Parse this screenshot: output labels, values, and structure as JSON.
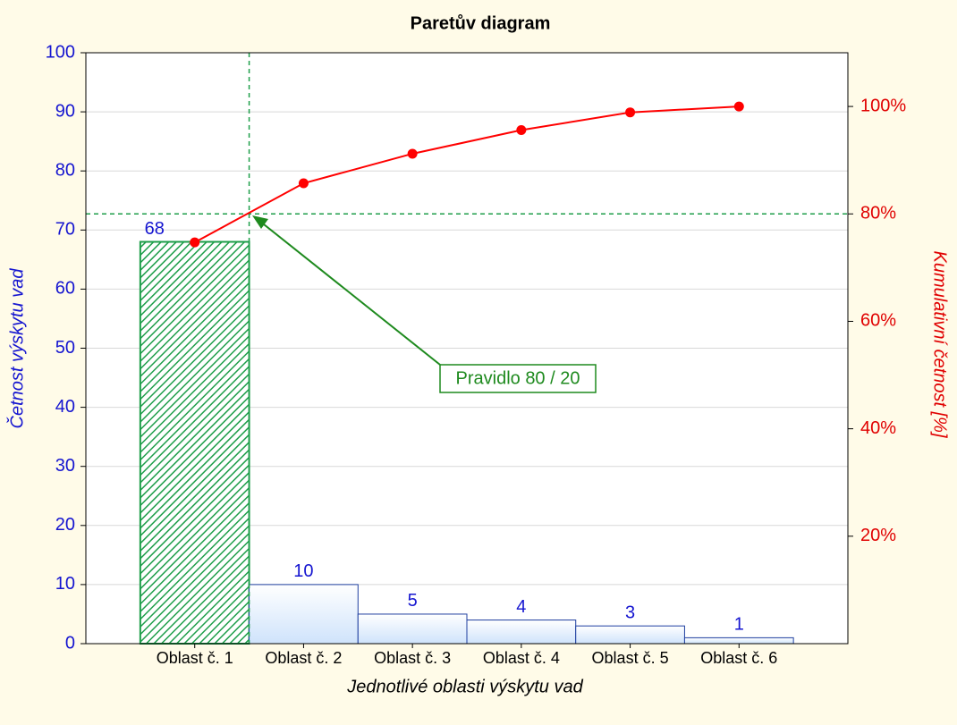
{
  "chart_data": {
    "type": "pareto",
    "title": "Paretův diagram",
    "x_label": "Jednotlivé oblasti výskytu vad",
    "y_label": "Četnost výskytu vad",
    "y2_label": "Kumulativní četnost [%]",
    "categories": [
      "Oblast č. 1",
      "Oblast č. 2",
      "Oblast č. 3",
      "Oblast č. 4",
      "Oblast č. 5",
      "Oblast č. 6"
    ],
    "series": [
      {
        "type": "bar",
        "color": "#cfe3fb",
        "border": "#1f3fa0",
        "values": [
          68,
          10,
          5,
          4,
          3,
          1
        ]
      },
      {
        "type": "line",
        "axis": "y2",
        "color": "#ff0000",
        "values": [
          74.7,
          85.7,
          91.2,
          95.6,
          98.9,
          100
        ]
      }
    ],
    "highlight_color": "#1e9e4a",
    "ylim": [
      0,
      100
    ],
    "yticks": [
      0,
      10,
      20,
      30,
      40,
      50,
      60,
      70,
      80,
      90,
      100
    ],
    "y2lim": [
      0,
      110
    ],
    "y2ticks": [
      {
        "value": 20,
        "label": "20%"
      },
      {
        "value": 40,
        "label": "40%"
      },
      {
        "value": 60,
        "label": "60%"
      },
      {
        "value": 80,
        "label": "80%"
      },
      {
        "value": 100,
        "label": "100%"
      }
    ],
    "threshold_y2": 80,
    "annotation": "Pravidlo 80 / 20",
    "grid": true
  }
}
